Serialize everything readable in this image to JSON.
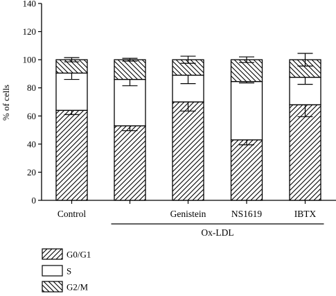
{
  "chart_data": {
    "type": "bar",
    "stacked": true,
    "ylabel": "% of cells",
    "ylim": [
      0,
      140
    ],
    "yticks": [
      0,
      20,
      40,
      60,
      80,
      100,
      120,
      140
    ],
    "categories": [
      "Control",
      "",
      "Genistein",
      "NS1619",
      "IBTX"
    ],
    "group_label": "Ox-LDL",
    "group_span": [
      1,
      4
    ],
    "series": [
      {
        "name": "G0/G1",
        "pattern": "hatch-forward",
        "values": [
          64,
          53,
          70,
          43,
          68
        ],
        "errors": [
          3,
          3.5,
          6.5,
          3.5,
          8.5
        ]
      },
      {
        "name": "S",
        "pattern": "plain",
        "values": [
          26.5,
          33,
          19,
          41.5,
          19.5
        ],
        "errors": [
          4.5,
          4.5,
          6,
          1,
          5
        ]
      },
      {
        "name": "G2/M",
        "pattern": "hatch-backward",
        "values": [
          9.5,
          14,
          11,
          15.5,
          12.5
        ],
        "errors": [
          1.5,
          1,
          2.5,
          2,
          4.5
        ]
      }
    ],
    "grid": false,
    "legend_position": "bottom-left"
  }
}
